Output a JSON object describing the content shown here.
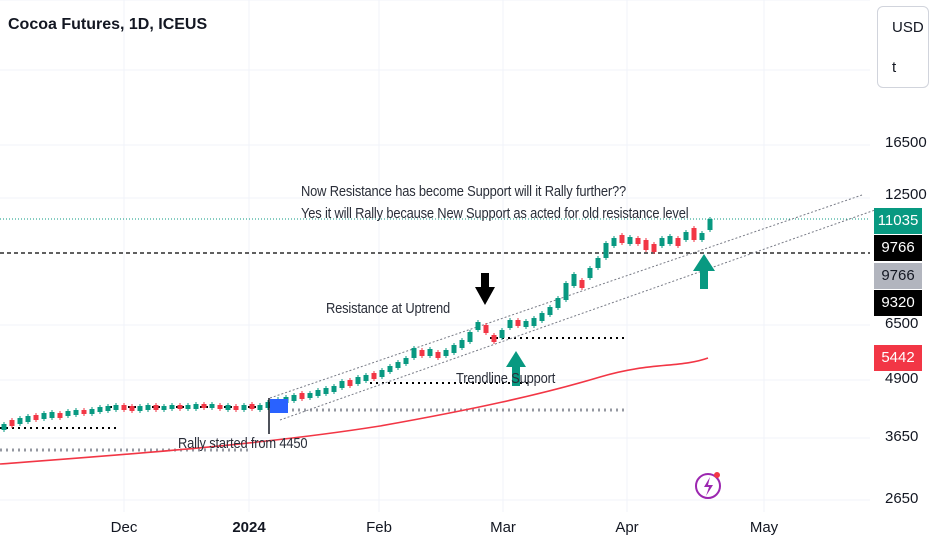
{
  "header": {
    "title": "Cocoa Futures, 1D, ICEUS"
  },
  "currency": {
    "code": "USD",
    "unit": "t"
  },
  "annotations": {
    "line1": "Now Resistance has become Support will it Rally further??",
    "line2": "Yes it will Rally because New Support as acted for old resistance level",
    "resistance": "Resistance at Uptrend",
    "trendline": "Trendline Support",
    "rally": "Rally started from 4450"
  },
  "badges": {
    "last": "11035",
    "level_a": "9766",
    "level_b": "9766",
    "level_c": "9320",
    "ma": "5442"
  },
  "colors": {
    "up": "#089981",
    "down": "#f23645",
    "ma": "#f23645",
    "arrow_up": "#089981",
    "arrow_down": "#000000"
  },
  "chart_data": {
    "type": "candlestick",
    "symbol": "Cocoa Futures",
    "interval": "1D",
    "y_ticks": [
      "16500",
      "12500",
      "9766",
      "6500",
      "4900",
      "3650",
      "2650"
    ],
    "x_ticks": [
      "Dec",
      "2024",
      "Feb",
      "Mar",
      "Apr",
      "May"
    ],
    "y_scale": "log",
    "series": [
      {
        "name": "price",
        "last": 11035
      },
      {
        "name": "moving-average",
        "last": 5442
      }
    ]
  }
}
